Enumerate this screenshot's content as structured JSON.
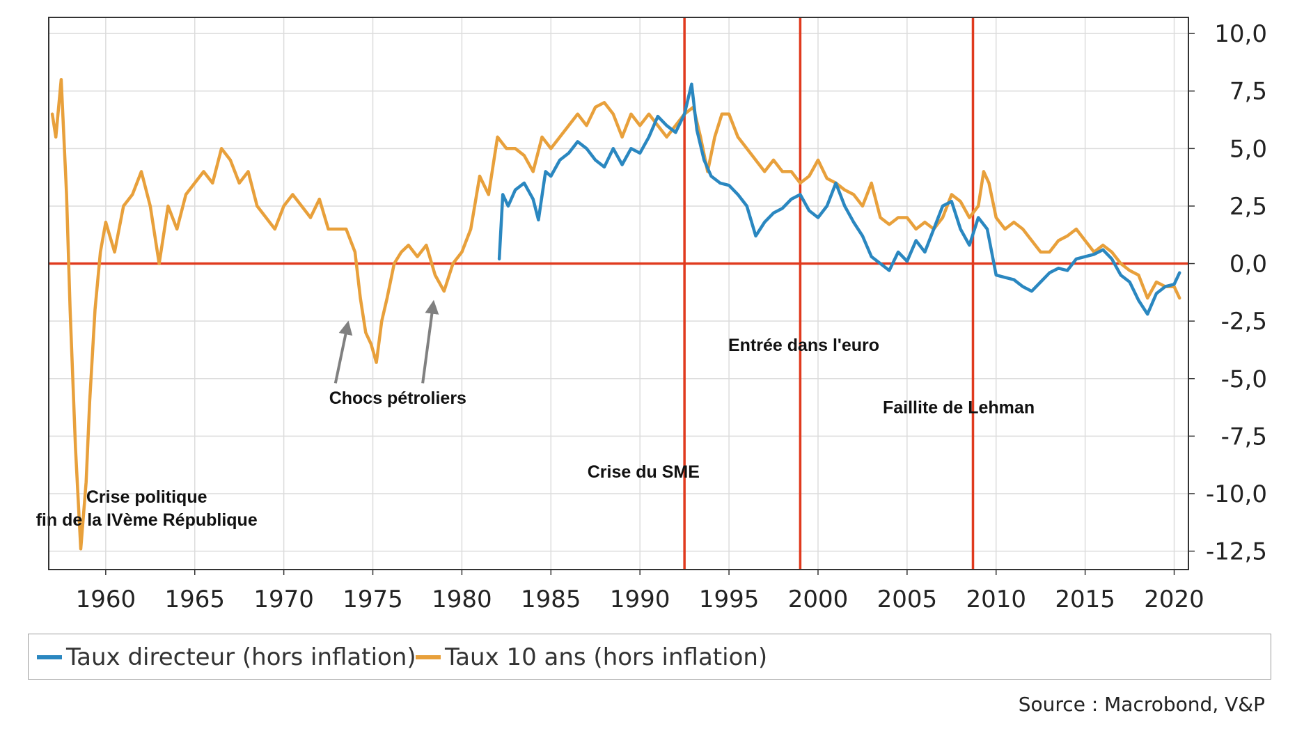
{
  "chart_data": {
    "type": "line",
    "title": "",
    "xlabel": "",
    "ylabel": "",
    "xlim": [
      1956.8,
      2020.8
    ],
    "ylim": [
      -13.3,
      10.7
    ],
    "grid": true,
    "y_axis_side": "right",
    "x_ticks": [
      "1960",
      "1965",
      "1970",
      "1975",
      "1980",
      "1985",
      "1990",
      "1995",
      "2000",
      "2005",
      "2010",
      "2015",
      "2020"
    ],
    "y_ticks": [
      "10,0",
      "7,5",
      "5,0",
      "2,5",
      "0,0",
      "-2,5",
      "-5,0",
      "-7,5",
      "-10,0",
      "-12,5"
    ],
    "series": [
      {
        "name": "Taux directeur (hors inflation)",
        "color": "#2a87c0",
        "x": [
          1982.1,
          1982.3,
          1982.6,
          1983.0,
          1983.5,
          1984.0,
          1984.3,
          1984.7,
          1985.0,
          1985.5,
          1986.0,
          1986.5,
          1987.0,
          1987.5,
          1988.0,
          1988.5,
          1989.0,
          1989.5,
          1990.0,
          1990.5,
          1991.0,
          1991.5,
          1992.0,
          1992.5,
          1992.9,
          1993.2,
          1993.6,
          1994.0,
          1994.5,
          1995.0,
          1995.5,
          1996.0,
          1996.5,
          1997.0,
          1997.5,
          1998.0,
          1998.5,
          1999.0,
          1999.5,
          2000.0,
          2000.5,
          2001.0,
          2001.5,
          2002.0,
          2002.5,
          2003.0,
          2003.5,
          2004.0,
          2004.5,
          2005.0,
          2005.5,
          2006.0,
          2006.5,
          2007.0,
          2007.5,
          2008.0,
          2008.5,
          2009.0,
          2009.5,
          2010.0,
          2010.5,
          2011.0,
          2011.5,
          2012.0,
          2012.5,
          2013.0,
          2013.5,
          2014.0,
          2014.5,
          2015.0,
          2015.5,
          2016.0,
          2016.5,
          2017.0,
          2017.5,
          2018.0,
          2018.5,
          2019.0,
          2019.5,
          2020.0,
          2020.3
        ],
        "values": [
          0.2,
          3.0,
          2.5,
          3.2,
          3.5,
          2.8,
          1.9,
          4.0,
          3.8,
          4.5,
          4.8,
          5.3,
          5.0,
          4.5,
          4.2,
          5.0,
          4.3,
          5.0,
          4.8,
          5.5,
          6.4,
          6.0,
          5.7,
          6.5,
          7.8,
          5.8,
          4.5,
          3.8,
          3.5,
          3.4,
          3.0,
          2.5,
          1.2,
          1.8,
          2.2,
          2.4,
          2.8,
          3.0,
          2.3,
          2.0,
          2.5,
          3.5,
          2.5,
          1.8,
          1.2,
          0.3,
          0.0,
          -0.3,
          0.5,
          0.1,
          1.0,
          0.5,
          1.5,
          2.5,
          2.7,
          1.5,
          0.8,
          2.0,
          1.5,
          -0.5,
          -0.6,
          -0.7,
          -1.0,
          -1.2,
          -0.8,
          -0.4,
          -0.2,
          -0.3,
          0.2,
          0.3,
          0.4,
          0.6,
          0.2,
          -0.5,
          -0.8,
          -1.6,
          -2.2,
          -1.3,
          -1.0,
          -0.9,
          -0.4
        ]
      },
      {
        "name": "Taux 10 ans (hors inflation)",
        "color": "#e8a03b",
        "x": [
          1957.0,
          1957.2,
          1957.5,
          1957.8,
          1958.0,
          1958.3,
          1958.6,
          1958.9,
          1959.1,
          1959.4,
          1959.7,
          1960.0,
          1960.5,
          1961.0,
          1961.5,
          1962.0,
          1962.5,
          1963.0,
          1963.5,
          1964.0,
          1964.5,
          1965.0,
          1965.5,
          1966.0,
          1966.5,
          1967.0,
          1967.5,
          1968.0,
          1968.5,
          1969.0,
          1969.5,
          1970.0,
          1970.5,
          1971.0,
          1971.5,
          1972.0,
          1972.5,
          1973.0,
          1973.5,
          1974.0,
          1974.3,
          1974.6,
          1974.9,
          1975.2,
          1975.5,
          1975.8,
          1976.2,
          1976.6,
          1977.0,
          1977.5,
          1978.0,
          1978.5,
          1979.0,
          1979.5,
          1980.0,
          1980.5,
          1981.0,
          1981.5,
          1982.0,
          1982.5,
          1983.0,
          1983.5,
          1984.0,
          1984.5,
          1985.0,
          1985.5,
          1986.0,
          1986.5,
          1987.0,
          1987.5,
          1988.0,
          1988.5,
          1989.0,
          1989.5,
          1990.0,
          1990.5,
          1991.0,
          1991.5,
          1992.0,
          1992.5,
          1993.0,
          1993.4,
          1993.8,
          1994.2,
          1994.6,
          1995.0,
          1995.5,
          1996.0,
          1996.5,
          1997.0,
          1997.5,
          1998.0,
          1998.5,
          1999.0,
          1999.5,
          2000.0,
          2000.5,
          2001.0,
          2001.5,
          2002.0,
          2002.5,
          2003.0,
          2003.5,
          2004.0,
          2004.5,
          2005.0,
          2005.5,
          2006.0,
          2006.5,
          2007.0,
          2007.5,
          2008.0,
          2008.5,
          2009.0,
          2009.3,
          2009.6,
          2010.0,
          2010.5,
          2011.0,
          2011.5,
          2012.0,
          2012.5,
          2013.0,
          2013.5,
          2014.0,
          2014.5,
          2015.0,
          2015.5,
          2016.0,
          2016.5,
          2017.0,
          2017.5,
          2018.0,
          2018.5,
          2019.0,
          2019.5,
          2020.0,
          2020.3
        ],
        "values": [
          6.5,
          5.5,
          8.0,
          3.0,
          -2.0,
          -8.0,
          -12.4,
          -9.5,
          -6.0,
          -2.0,
          0.5,
          1.8,
          0.5,
          2.5,
          3.0,
          4.0,
          2.5,
          0.0,
          2.5,
          1.5,
          3.0,
          3.5,
          4.0,
          3.5,
          5.0,
          4.5,
          3.5,
          4.0,
          2.5,
          2.0,
          1.5,
          2.5,
          3.0,
          2.5,
          2.0,
          2.8,
          1.5,
          1.5,
          1.5,
          0.5,
          -1.5,
          -3.0,
          -3.5,
          -4.3,
          -2.5,
          -1.5,
          0.0,
          0.5,
          0.8,
          0.3,
          0.8,
          -0.5,
          -1.2,
          0.0,
          0.5,
          1.5,
          3.8,
          3.0,
          5.5,
          5.0,
          5.0,
          4.7,
          4.0,
          5.5,
          5.0,
          5.5,
          6.0,
          6.5,
          6.0,
          6.8,
          7.0,
          6.5,
          5.5,
          6.5,
          6.0,
          6.5,
          6.0,
          5.5,
          6.0,
          6.5,
          6.8,
          5.5,
          4.0,
          5.5,
          6.5,
          6.5,
          5.5,
          5.0,
          4.5,
          4.0,
          4.5,
          4.0,
          4.0,
          3.5,
          3.8,
          4.5,
          3.7,
          3.5,
          3.2,
          3.0,
          2.5,
          3.5,
          2.0,
          1.7,
          2.0,
          2.0,
          1.5,
          1.8,
          1.5,
          2.0,
          3.0,
          2.7,
          2.0,
          2.5,
          4.0,
          3.5,
          2.0,
          1.5,
          1.8,
          1.5,
          1.0,
          0.5,
          0.5,
          1.0,
          1.2,
          1.5,
          1.0,
          0.5,
          0.8,
          0.5,
          0.0,
          -0.3,
          -0.5,
          -1.5,
          -0.8,
          -1.0,
          -1.0,
          -1.5
        ]
      }
    ],
    "vlines": [
      1992.5,
      1999.0,
      2008.7
    ],
    "hline": 0,
    "annotations": [
      {
        "text": "Crise politique",
        "x": 1962.3,
        "y": -10.4
      },
      {
        "text": "fin de la IVème République",
        "x": 1962.3,
        "y": -11.4
      },
      {
        "text": "Chocs pétroliers",
        "x": 1976.4,
        "y": -6.1
      },
      {
        "text": "Crise du SME",
        "x": 1990.2,
        "y": -9.3
      },
      {
        "text": "Entrée dans l'euro",
        "x": 1999.2,
        "y": -3.8
      },
      {
        "text": "Faillite de Lehman",
        "x": 2007.9,
        "y": -6.5
      }
    ],
    "arrows": [
      {
        "from": [
          1972.9,
          -5.2
        ],
        "to": [
          1973.6,
          -2.6
        ]
      },
      {
        "from": [
          1977.8,
          -5.2
        ],
        "to": [
          1978.4,
          -1.7
        ]
      }
    ],
    "legend_position": "bottom",
    "colors": {
      "hline": "#e03a1e",
      "vline": "#e03a1e",
      "arrow": "#808080",
      "grid": "#dcdcdc",
      "axis": "#333333"
    }
  },
  "footer": {
    "source": "Source : Macrobond, V&P"
  }
}
